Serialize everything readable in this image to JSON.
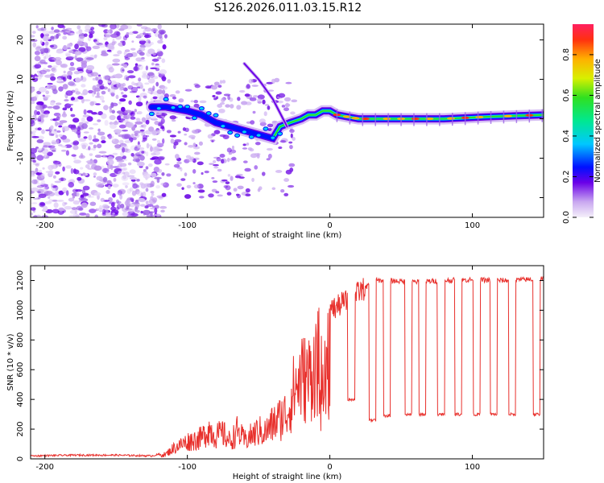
{
  "title": "S126.2026.011.03.15.R12",
  "chart_data": [
    {
      "type": "heatmap",
      "xlabel": "Height of straight line (km)",
      "ylabel": "Frequency (Hz)",
      "xlim": [
        -210,
        150
      ],
      "ylim": [
        -25,
        24
      ],
      "xticks": [
        -200,
        -100,
        0,
        100
      ],
      "yticks": [
        -20,
        -10,
        0,
        10,
        20
      ],
      "colorbar": {
        "label": "Normalized spectral amplitude",
        "range": [
          0,
          0.95
        ],
        "ticks": [
          0.0,
          0.2,
          0.4,
          0.6,
          0.8
        ]
      },
      "ridge": [
        {
          "x": -125,
          "y": 3
        },
        {
          "x": -115,
          "y": 3
        },
        {
          "x": -100,
          "y": 2
        },
        {
          "x": -90,
          "y": 1
        },
        {
          "x": -80,
          "y": -1
        },
        {
          "x": -70,
          "y": -2
        },
        {
          "x": -60,
          "y": -3
        },
        {
          "x": -50,
          "y": -4
        },
        {
          "x": -40,
          "y": -5
        },
        {
          "x": -35,
          "y": -2
        },
        {
          "x": -28,
          "y": -1
        },
        {
          "x": -20,
          "y": 0
        },
        {
          "x": -15,
          "y": 1
        },
        {
          "x": -10,
          "y": 1
        },
        {
          "x": -5,
          "y": 2
        },
        {
          "x": 0,
          "y": 2
        },
        {
          "x": 5,
          "y": 1
        },
        {
          "x": 20,
          "y": 0
        },
        {
          "x": 50,
          "y": 0
        },
        {
          "x": 80,
          "y": 0
        },
        {
          "x": 110,
          "y": 0.5
        },
        {
          "x": 150,
          "y": 1
        }
      ],
      "branch": [
        {
          "x": -60,
          "y": 14
        },
        {
          "x": -50,
          "y": 10
        },
        {
          "x": -40,
          "y": 5
        },
        {
          "x": -30,
          "y": -2
        }
      ]
    },
    {
      "type": "line",
      "xlabel": "Height of straight line (km)",
      "ylabel": "SNR (10 * v/v)",
      "xlim": [
        -210,
        150
      ],
      "ylim": [
        0,
        1300
      ],
      "xticks": [
        -200,
        -100,
        0,
        100
      ],
      "yticks": [
        0,
        200,
        400,
        600,
        800,
        1000,
        1200
      ],
      "series": [
        {
          "name": "SNR",
          "color": "#e8302c",
          "points": [
            [
              -210,
              20
            ],
            [
              -180,
              25
            ],
            [
              -150,
              25
            ],
            [
              -125,
              20
            ],
            [
              -115,
              40
            ],
            [
              -110,
              90
            ],
            [
              -100,
              150
            ],
            [
              -90,
              180
            ],
            [
              -85,
              260
            ],
            [
              -80,
              200
            ],
            [
              -75,
              220
            ],
            [
              -70,
              150
            ],
            [
              -65,
              240
            ],
            [
              -60,
              160
            ],
            [
              -55,
              200
            ],
            [
              -50,
              240
            ],
            [
              -45,
              230
            ],
            [
              -40,
              300
            ],
            [
              -35,
              350
            ],
            [
              -30,
              400
            ],
            [
              -25,
              600
            ],
            [
              -20,
              700
            ],
            [
              -15,
              700
            ],
            [
              -10,
              820
            ],
            [
              -5,
              850
            ],
            [
              0,
              1000
            ],
            [
              5,
              1020
            ],
            [
              10,
              1060
            ],
            [
              15,
              1050
            ],
            [
              20,
              1120
            ],
            [
              25,
              1150
            ],
            [
              30,
              1200
            ],
            [
              40,
              1200
            ],
            [
              60,
              1190
            ],
            [
              80,
              1200
            ],
            [
              100,
              1205
            ],
            [
              120,
              1200
            ],
            [
              150,
              1210
            ]
          ],
          "dips": [
            {
              "x": 15,
              "y": 400
            },
            {
              "x": 30,
              "y": 260
            },
            {
              "x": 40,
              "y": 290
            },
            {
              "x": 55,
              "y": 300
            },
            {
              "x": 65,
              "y": 300
            },
            {
              "x": 78,
              "y": 300
            },
            {
              "x": 90,
              "y": 300
            },
            {
              "x": 103,
              "y": 300
            },
            {
              "x": 115,
              "y": 300
            },
            {
              "x": 128,
              "y": 300
            },
            {
              "x": 145,
              "y": 300
            }
          ]
        }
      ]
    }
  ]
}
